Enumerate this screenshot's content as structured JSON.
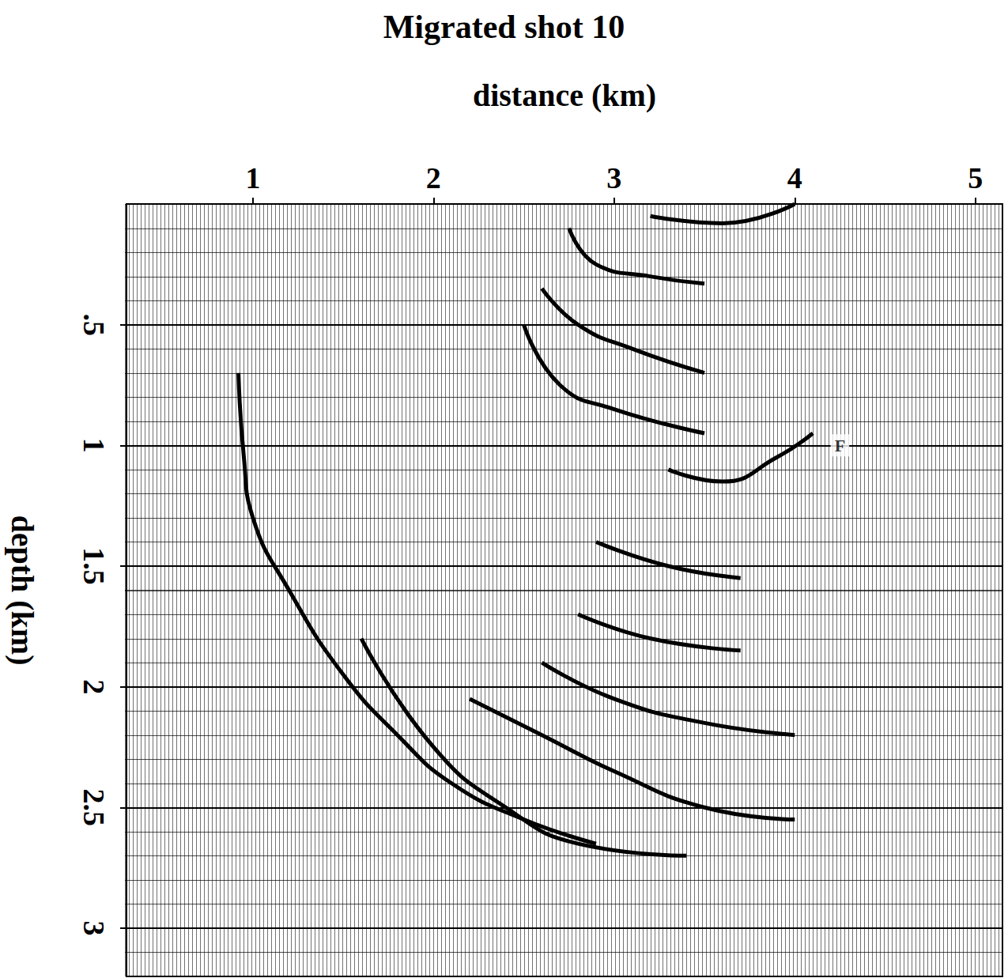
{
  "chart_data": {
    "type": "line",
    "title": "Migrated shot 10",
    "x_label": "distance (km)",
    "y_label": "depth (km)",
    "xlim": [
      0.3,
      5.15
    ],
    "ylim": [
      0,
      3.2
    ],
    "xticks": [
      1,
      2,
      3,
      4,
      5
    ],
    "yticks": [
      {
        "value": 0.5,
        "label": ".5"
      },
      1,
      1.5,
      2,
      2.5,
      3
    ],
    "grid": true,
    "series": [
      {
        "color": "#000000",
        "x": [
          0.92,
          0.95,
          1.0,
          1.2,
          1.5,
          1.8,
          2.1,
          2.5,
          2.9
        ],
        "values": [
          0.7,
          1.05,
          1.3,
          1.6,
          1.95,
          2.2,
          2.4,
          2.55,
          2.65
        ]
      },
      {
        "color": "#000000",
        "x": [
          1.6,
          2.0,
          2.4,
          2.8,
          3.4
        ],
        "values": [
          1.8,
          2.25,
          2.5,
          2.65,
          2.7
        ]
      },
      {
        "color": "#000000",
        "x": [
          2.2,
          2.6,
          3.0,
          3.5,
          4.0
        ],
        "values": [
          2.05,
          2.2,
          2.35,
          2.5,
          2.55
        ]
      },
      {
        "color": "#000000",
        "x": [
          2.6,
          3.0,
          3.5,
          4.0
        ],
        "values": [
          1.9,
          2.05,
          2.15,
          2.2
        ]
      },
      {
        "color": "#000000",
        "x": [
          2.8,
          3.2,
          3.7
        ],
        "values": [
          1.7,
          1.8,
          1.85
        ]
      },
      {
        "color": "#000000",
        "x": [
          2.9,
          3.3,
          3.7
        ],
        "values": [
          1.4,
          1.5,
          1.55
        ]
      },
      {
        "color": "#000000",
        "x": [
          3.3,
          3.6,
          3.9,
          4.1
        ],
        "values": [
          1.1,
          1.15,
          1.05,
          0.95
        ]
      },
      {
        "color": "#000000",
        "x": [
          2.5,
          2.7,
          3.0,
          3.5
        ],
        "values": [
          0.5,
          0.75,
          0.85,
          0.95
        ]
      },
      {
        "color": "#000000",
        "x": [
          2.6,
          2.8,
          3.1,
          3.5
        ],
        "values": [
          0.35,
          0.5,
          0.6,
          0.7
        ]
      },
      {
        "color": "#000000",
        "x": [
          2.75,
          2.9,
          3.2,
          3.5
        ],
        "values": [
          0.1,
          0.25,
          0.3,
          0.33
        ]
      },
      {
        "color": "#000000",
        "x": [
          3.2,
          3.6,
          4.0
        ],
        "values": [
          0.05,
          0.08,
          0.0
        ]
      }
    ],
    "annotations": [
      {
        "text": "F",
        "x": 4.25,
        "y": 1.0
      }
    ]
  }
}
